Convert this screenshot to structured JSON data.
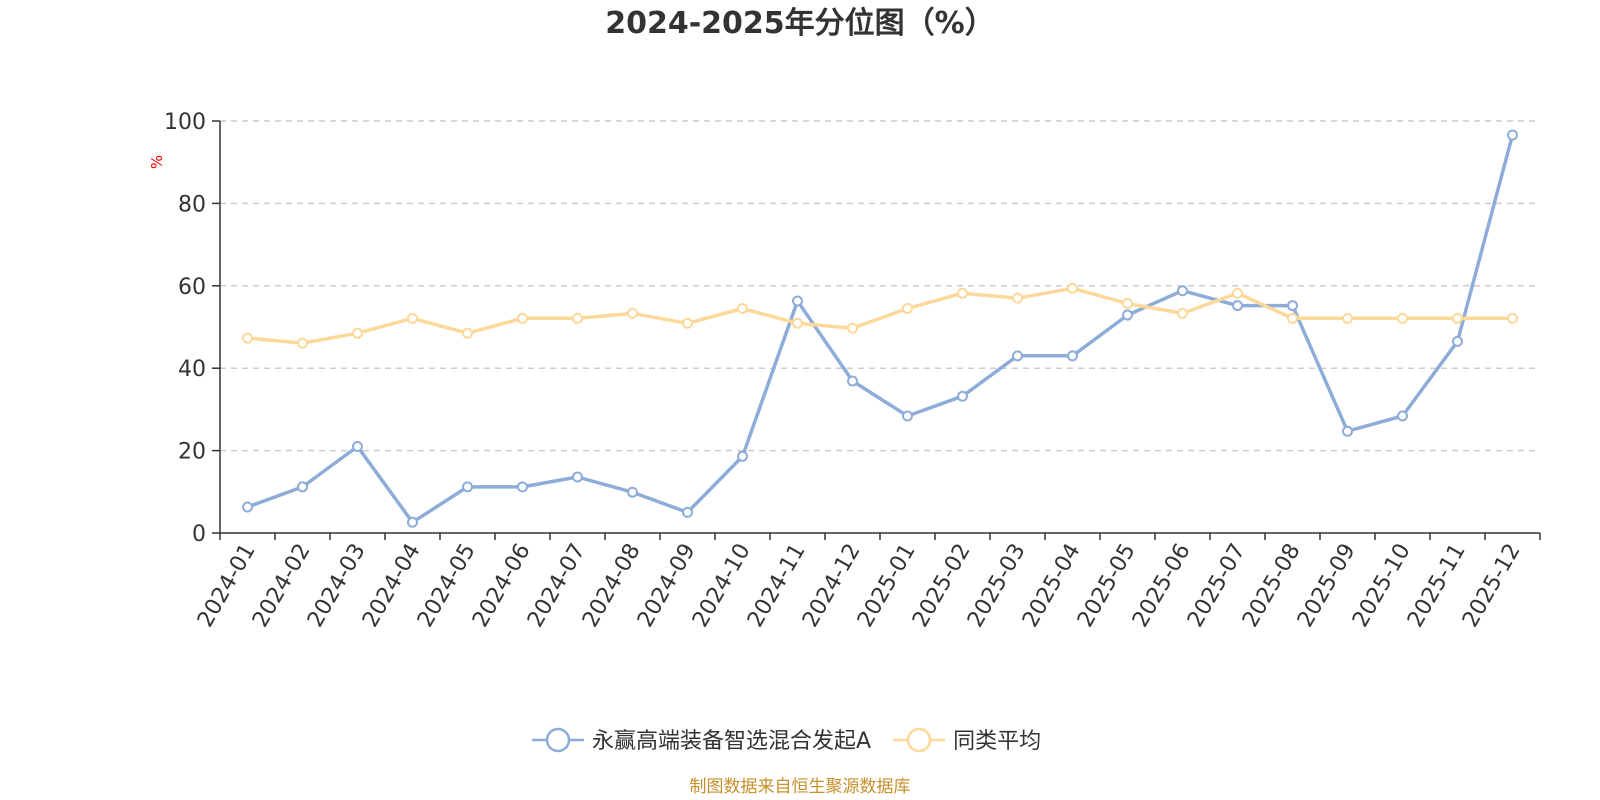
{
  "chart_data": {
    "type": "line",
    "title": "2024-2025年分位图（%）",
    "ylabel": "%",
    "xlabel": "",
    "ylim": [
      0,
      100
    ],
    "yticks": [
      0,
      20,
      40,
      60,
      80,
      100
    ],
    "grid": true,
    "legend_position": "bottom-center",
    "categories": [
      "2024-01",
      "2024-02",
      "2024-03",
      "2024-04",
      "2024-05",
      "2024-06",
      "2024-07",
      "2024-08",
      "2024-09",
      "2024-10",
      "2024-11",
      "2024-12",
      "2025-01",
      "2025-02",
      "2025-03",
      "2025-04",
      "2025-05",
      "2025-06",
      "2025-07",
      "2025-08",
      "2025-09",
      "2025-10",
      "2025-11",
      "2025-12"
    ],
    "series": [
      {
        "name": "永赢高端装备智选混合发起A",
        "color": "#8eacd8",
        "values": [
          6.3,
          11.2,
          21.0,
          2.6,
          11.2,
          11.2,
          13.6,
          9.9,
          5.0,
          18.6,
          56.3,
          36.9,
          28.4,
          33.2,
          43.0,
          43.0,
          52.9,
          58.8,
          55.2,
          55.2,
          24.7,
          28.4,
          46.5,
          96.6
        ]
      },
      {
        "name": "同类平均",
        "color": "#fcd89a",
        "values": [
          47.3,
          46.1,
          48.5,
          52.1,
          48.5,
          52.1,
          52.1,
          53.3,
          50.9,
          54.5,
          50.9,
          49.7,
          54.5,
          58.2,
          57.0,
          59.4,
          55.7,
          53.3,
          58.2,
          52.1,
          52.1,
          52.1,
          52.1,
          52.1
        ]
      }
    ],
    "axis_color": "#333333",
    "grid_color": "#cccccc",
    "unit_color": "#ff0000"
  },
  "footer": {
    "source": "制图数据来自恒生聚源数据库",
    "source_color": "#c8902a"
  }
}
